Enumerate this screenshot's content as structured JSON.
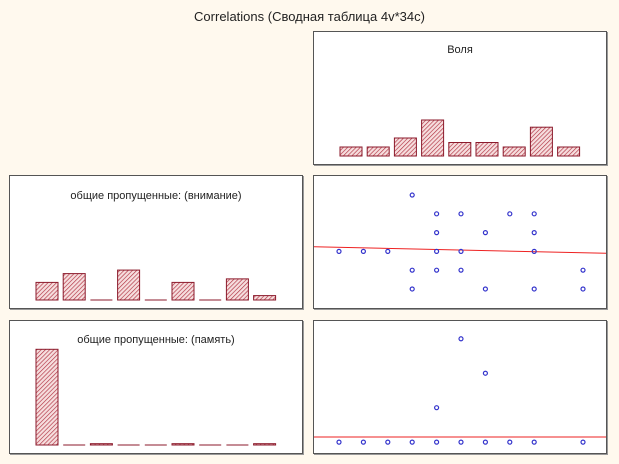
{
  "chart_data": [
    {
      "type": "bar",
      "title": "Correlations (Сводная таблица 4v*34с)",
      "panel": "histogram",
      "label": "Воля",
      "values": [
        1,
        1,
        2,
        4,
        1.5,
        1.5,
        1,
        3.2,
        1
      ]
    },
    {
      "type": "bar",
      "panel": "histogram",
      "label": "общие пропущенные: (внимание)",
      "values": [
        2,
        3,
        0,
        3.4,
        0,
        2,
        0,
        2.4,
        0.5
      ]
    },
    {
      "type": "bar",
      "panel": "histogram",
      "label": "общие пропущенные: (память)",
      "values": [
        29,
        0,
        0.4,
        0,
        0,
        0.4,
        0,
        0,
        0.4
      ]
    },
    {
      "type": "scatter",
      "panel": "scatter",
      "xvar": "Воля",
      "yvar": "общие пропущенные: (внимание)",
      "xlim": [
        0,
        12
      ],
      "ylim": [
        0.2,
        6.8
      ],
      "points": [
        [
          1,
          3
        ],
        [
          2,
          3
        ],
        [
          3,
          3
        ],
        [
          4,
          6
        ],
        [
          4,
          2
        ],
        [
          4,
          1
        ],
        [
          5,
          5
        ],
        [
          5,
          4
        ],
        [
          5,
          3
        ],
        [
          5,
          2
        ],
        [
          6,
          5
        ],
        [
          6,
          3
        ],
        [
          6,
          2
        ],
        [
          7,
          4
        ],
        [
          7,
          1
        ],
        [
          8,
          5
        ],
        [
          9,
          5
        ],
        [
          9,
          4
        ],
        [
          9,
          3
        ],
        [
          9,
          1
        ],
        [
          11,
          2
        ],
        [
          11,
          1
        ]
      ],
      "fit_line": {
        "y_at_xmin": 3.25,
        "y_at_xmax": 2.9
      }
    },
    {
      "type": "scatter",
      "panel": "scatter",
      "xvar": "Воля",
      "yvar": "общие пропущенные: (память)",
      "xlim": [
        0,
        12
      ],
      "ylim": [
        -0.2,
        3.4
      ],
      "points": [
        [
          1,
          0
        ],
        [
          2,
          0
        ],
        [
          3,
          0
        ],
        [
          4,
          0
        ],
        [
          5,
          0
        ],
        [
          6,
          0
        ],
        [
          7,
          0
        ],
        [
          8,
          0
        ],
        [
          9,
          0
        ],
        [
          11,
          0
        ],
        [
          5,
          1
        ],
        [
          6,
          3
        ],
        [
          7,
          2
        ]
      ],
      "fit_line": {
        "y_at_xmin": 0.15,
        "y_at_xmax": 0.15
      }
    }
  ],
  "colors": {
    "bar_stroke": "#8b1a2b",
    "bar_hatch": "#b03040",
    "point": "#3333cc",
    "fit_line": "#ee2222"
  }
}
